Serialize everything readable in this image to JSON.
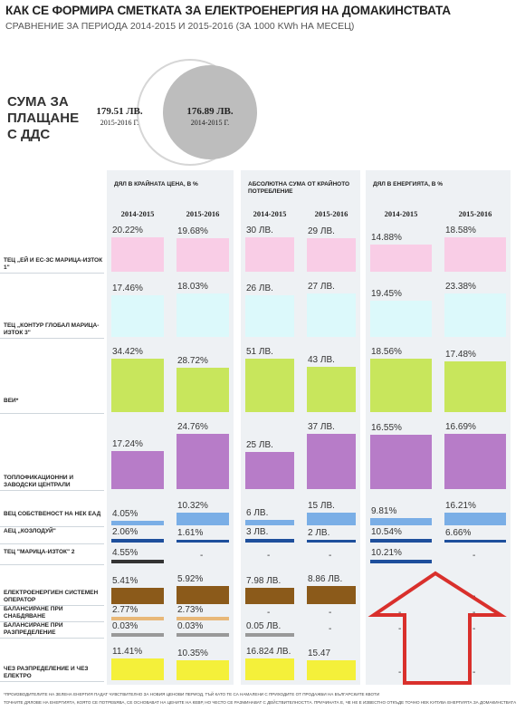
{
  "header": {
    "title": "КАК СЕ ФОРМИРА СМЕТКАТА ЗА ЕЛЕКТРОЕНЕРГИЯ НА ДОМАКИНСТВАТА",
    "subtitle": "СРАВНЕНИЕ ЗА ПЕРИОДА 2014-2015 И 2015-2016 (ЗА 1000 KWh НА МЕСЕЦ)"
  },
  "total": {
    "label": "СУМА ЗА ПЛАЩАНЕ С ДДС",
    "items": [
      {
        "amount": "179.51 ЛВ.",
        "period": "2015-2016 Г."
      },
      {
        "amount": "176.89 ЛВ.",
        "period": "2014-2015 Г."
      }
    ]
  },
  "sections": [
    {
      "title": "ДЯЛ В КРАЙНАТА ЦЕНА, В %",
      "periods": [
        "2014-2015",
        "2015-2016"
      ]
    },
    {
      "title": "АБСОЛЮТНА СУМА ОТ КРАЙНОТО ПОТРЕБЛЕНИЕ",
      "periods": [
        "2014-2015",
        "2015-2016"
      ]
    },
    {
      "title": "ДЯЛ В ЕНЕРГИЯТА, В %",
      "periods": [
        "2014-2015",
        "2015-2016"
      ]
    }
  ],
  "rows": [
    {
      "label": "ТЕЦ „ЕЙ И ЕС-ЗС МАРИЦА-ИЗТОК 1\"",
      "color": "#f9cde6",
      "cells": [
        [
          {
            "value": 20.22,
            "label": "20.22%"
          },
          {
            "value": 19.68,
            "label": "19.68%"
          }
        ],
        [
          {
            "value": 30,
            "label": "30 ЛВ."
          },
          {
            "value": 29,
            "label": "29 ЛВ."
          }
        ],
        [
          {
            "value": 14.88,
            "label": "14.88%"
          },
          {
            "value": 18.58,
            "label": "18.58%"
          }
        ]
      ]
    },
    {
      "label": "ТЕЦ „КОНТУР ГЛОБАЛ МАРИЦА-ИЗТОК 3\"",
      "color": "#dcf9fb",
      "cells": [
        [
          {
            "value": 17.46,
            "label": "17.46%"
          },
          {
            "value": 18.03,
            "label": "18.03%"
          }
        ],
        [
          {
            "value": 26,
            "label": "26 ЛВ."
          },
          {
            "value": 27,
            "label": "27 ЛВ."
          }
        ],
        [
          {
            "value": 19.45,
            "label": "19.45%"
          },
          {
            "value": 23.38,
            "label": "23.38%"
          }
        ]
      ]
    },
    {
      "label": "ВЕИ*",
      "color": "#c8e65c",
      "cells": [
        [
          {
            "value": 34.42,
            "label": "34.42%"
          },
          {
            "value": 28.72,
            "label": "28.72%"
          }
        ],
        [
          {
            "value": 51,
            "label": "51 ЛВ."
          },
          {
            "value": 43,
            "label": "43 ЛВ."
          }
        ],
        [
          {
            "value": 18.56,
            "label": "18.56%"
          },
          {
            "value": 17.48,
            "label": "17.48%"
          }
        ]
      ]
    },
    {
      "label": "ТОПЛОФИКАЦИОННИ И ЗАВОДСКИ ЦЕНТРАЛИ",
      "color": "#b77cc8",
      "cells": [
        [
          {
            "value": 17.24,
            "label": "17.24%"
          },
          {
            "value": 24.76,
            "label": "24.76%"
          }
        ],
        [
          {
            "value": 25,
            "label": "25 ЛВ."
          },
          {
            "value": 37,
            "label": "37 ЛВ."
          }
        ],
        [
          {
            "value": 16.55,
            "label": "16.55%"
          },
          {
            "value": 16.69,
            "label": "16.69%"
          }
        ]
      ]
    },
    {
      "label": "ВЕЦ СОБСТВЕНОСТ НА НЕК ЕАД",
      "color": "#7aaee6",
      "cells": [
        [
          {
            "value": 4.05,
            "label": "4.05%"
          },
          {
            "value": 10.32,
            "label": "10.32%"
          }
        ],
        [
          {
            "value": 6,
            "label": "6 ЛВ."
          },
          {
            "value": 15,
            "label": "15 ЛВ."
          }
        ],
        [
          {
            "value": 9.81,
            "label": "9.81%"
          },
          {
            "value": 16.21,
            "label": "16.21%"
          }
        ]
      ]
    },
    {
      "label": "АЕЦ „КОЗЛОДУЙ\"",
      "color": "#1e4f9c",
      "cells": [
        [
          {
            "value": 2.06,
            "label": "2.06%"
          },
          {
            "value": 1.61,
            "label": "1.61%"
          }
        ],
        [
          {
            "value": 3,
            "label": "3 ЛВ."
          },
          {
            "value": 2,
            "label": "2 ЛВ."
          }
        ],
        [
          {
            "value": 10.54,
            "label": "10.54%"
          },
          {
            "value": 6.66,
            "label": "6.66%"
          }
        ]
      ]
    },
    {
      "label": "ТЕЦ \"МАРИЦА-ИЗТОК\" 2",
      "color": "#1e4f9c",
      "cells": [
        [
          {
            "value": 4.55,
            "label": "4.55%",
            "color": "#333333"
          },
          {
            "value": null,
            "label": "-"
          }
        ],
        [
          {
            "value": null,
            "label": "-"
          },
          {
            "value": null,
            "label": "-"
          }
        ],
        [
          {
            "value": 10.21,
            "label": "10.21%"
          },
          {
            "value": null,
            "label": "-"
          }
        ]
      ]
    },
    {
      "label": "ЕЛЕКТРОЕНЕРГИЕН СИСТЕМЕН ОПЕРАТОР",
      "color": "#8b5a1a",
      "cells": [
        [
          {
            "value": 5.41,
            "label": "5.41%"
          },
          {
            "value": 5.92,
            "label": "5.92%"
          }
        ],
        [
          {
            "value": 7.98,
            "label": "7.98 ЛВ."
          },
          {
            "value": 8.86,
            "label": "8.86 ЛВ."
          }
        ],
        [
          {
            "value": null,
            "label": "-"
          },
          {
            "value": null,
            "label": "-"
          }
        ]
      ]
    },
    {
      "label": "БАЛАНСИРАНЕ ПРИ СНАБДЯВАНЕ",
      "color": "#e8b878",
      "cells": [
        [
          {
            "value": 2.77,
            "label": "2.77%"
          },
          {
            "value": 2.73,
            "label": "2.73%"
          }
        ],
        [
          {
            "value": null,
            "label": "-"
          },
          {
            "value": null,
            "label": "-"
          }
        ],
        [
          {
            "value": null,
            "label": "-"
          },
          {
            "value": null,
            "label": "-"
          }
        ]
      ]
    },
    {
      "label": "БАЛАНСИРАНЕ ПРИ РАЗПРЕДЕЛЕНИЕ",
      "color": "#999999",
      "cells": [
        [
          {
            "value": 0.03,
            "label": "0.03%"
          },
          {
            "value": 0.03,
            "label": "0.03%"
          }
        ],
        [
          {
            "value": 0.05,
            "label": "0.05 ЛВ."
          },
          {
            "value": null,
            "label": "-"
          }
        ],
        [
          {
            "value": null,
            "label": "-"
          },
          {
            "value": null,
            "label": "-"
          }
        ]
      ]
    },
    {
      "label": "ЧЕЗ РАЗПРЕДЕЛЕНИЕ И ЧЕЗ ЕЛЕКТРО",
      "color": "#f4f03a",
      "cells": [
        [
          {
            "value": 11.41,
            "label": "11.41%"
          },
          {
            "value": 10.35,
            "label": "10.35%"
          }
        ],
        [
          {
            "value": 16.824,
            "label": "16.824 ЛВ."
          },
          {
            "value": 15.47,
            "label": "15.47"
          }
        ],
        [
          {
            "value": null,
            "label": "-"
          },
          {
            "value": null,
            "label": "-"
          }
        ]
      ]
    }
  ],
  "footnotes": [
    "*ПРОИЗВОДИТЕЛИТЕ НА ЗЕЛЕНА ЕНЕРГИЯ ПАДАТ ЧУВСТВИТЕЛНО ЗА НОВИЯ ЦЕНОВИ ПЕРИОД, ТЪЙ КАТО ТЕ СА НАМАЛЕНИ С ПРИХОДИТЕ ОТ ПРОДАЖБИ НА БЪЛГАРСКИТЕ КВОТИ",
    "ТОЧНИТЕ ДЯЛОВЕ НА ЕНЕРГИЯТА, КОЯТО СЕ ПОТРЕБЯВА, СЕ ОСНОВАВАТ НА ЦЕНИТЕ НА КЕВР, НО ЧЕСТО СЕ РАЗМИНАВАТ С ДЕЙСТВИТЕЛНОСТТА. ПРИЧИНАТА Е, ЧЕ НЕ Е ИЗВЕСТНО ОТКЪДЕ ТОЧНО НЕК КУПУВА ЕНЕРГИЯТА ЗА ДОМАКИНСТВАТА"
  ]
}
